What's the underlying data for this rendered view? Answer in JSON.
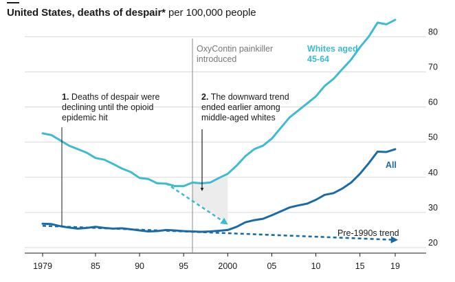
{
  "chart_data": {
    "type": "line",
    "title": "United States, deaths of despair*",
    "title_suffix": "per 100,000 people",
    "x_tick_labels": [
      "1979",
      "85",
      "90",
      "95",
      "2000",
      "05",
      "10",
      "15",
      "19"
    ],
    "x_tick_values": [
      1979,
      1985,
      1990,
      1995,
      2000,
      2005,
      2010,
      2015,
      2019
    ],
    "ylim": [
      20,
      83
    ],
    "y_ticks": [
      20,
      30,
      40,
      50,
      60,
      70,
      80
    ],
    "grid": true,
    "series": [
      {
        "name": "Whites aged 45-64",
        "color": "#3dbbd0",
        "x": [
          1979,
          1980,
          1981,
          1982,
          1983,
          1984,
          1985,
          1986,
          1987,
          1988,
          1989,
          1990,
          1991,
          1992,
          1993,
          1994,
          1995,
          1996,
          1997,
          1998,
          1999,
          2000,
          2001,
          2002,
          2003,
          2004,
          2005,
          2006,
          2007,
          2008,
          2009,
          2010,
          2011,
          2012,
          2013,
          2014,
          2015,
          2016,
          2017,
          2018,
          2019
        ],
        "y": [
          52.5,
          52,
          50.5,
          49,
          48,
          47,
          45.5,
          45,
          43.8,
          42.5,
          41.5,
          39.8,
          39.5,
          38.3,
          38.2,
          37.5,
          37.5,
          38.5,
          38.3,
          38.5,
          39.8,
          41,
          43.3,
          46,
          48,
          49,
          51,
          54,
          57,
          59,
          61,
          63,
          66,
          68,
          70.8,
          73.5,
          77,
          80,
          84,
          83.5,
          84.8
        ]
      },
      {
        "name": "All",
        "color": "#1a6ba5",
        "x": [
          1979,
          1980,
          1981,
          1982,
          1983,
          1984,
          1985,
          1986,
          1987,
          1988,
          1989,
          1990,
          1991,
          1992,
          1993,
          1994,
          1995,
          1996,
          1997,
          1998,
          1999,
          2000,
          2001,
          2002,
          2003,
          2004,
          2005,
          2006,
          2007,
          2008,
          2009,
          2010,
          2011,
          2012,
          2013,
          2014,
          2015,
          2016,
          2017,
          2018,
          2019
        ],
        "y": [
          26.8,
          26.7,
          26.1,
          25.7,
          25.4,
          25.6,
          25.9,
          25.6,
          25.4,
          25.5,
          25.2,
          24.9,
          24.6,
          24.7,
          25,
          24.9,
          24.7,
          24.6,
          24.5,
          24.6,
          24.8,
          25,
          25.9,
          27.2,
          27.8,
          28.2,
          29.2,
          30.3,
          31.4,
          32,
          32.5,
          33.6,
          35,
          35.5,
          36.8,
          38.5,
          41,
          44,
          47.3,
          47.2,
          48
        ]
      }
    ],
    "trend_lines": [
      {
        "name": "Whites trend",
        "color": "#3dbbd0",
        "x": [
          1993,
          2000
        ],
        "y": [
          38.3,
          27.2
        ]
      },
      {
        "name": "Pre-1990s trend",
        "color": "#1a6ba5",
        "x": [
          1979,
          2019
        ],
        "y": [
          26.2,
          22.2
        ]
      }
    ],
    "annotations": {
      "a1_num": "1.",
      "a1_lines": [
        "Deaths of despair were",
        "declining until the opioid",
        "epidemic hit"
      ],
      "a2_num": "2.",
      "a2_lines": [
        "The downward trend",
        "ended earlier among",
        "middle-aged whites"
      ],
      "oxy_lines": [
        "OxyContin painkiller",
        "introduced"
      ],
      "oxy_year": 1996,
      "whites_label_lines": [
        "Whites aged",
        "45-64"
      ],
      "all_label": "All",
      "pre1990_label": "Pre-1990s trend"
    },
    "colors": {
      "whites": "#3dbbd0",
      "all": "#1a6ba5",
      "grid": "#d9d9d9",
      "shade": "#ececec",
      "oxy_line": "#888888"
    }
  }
}
